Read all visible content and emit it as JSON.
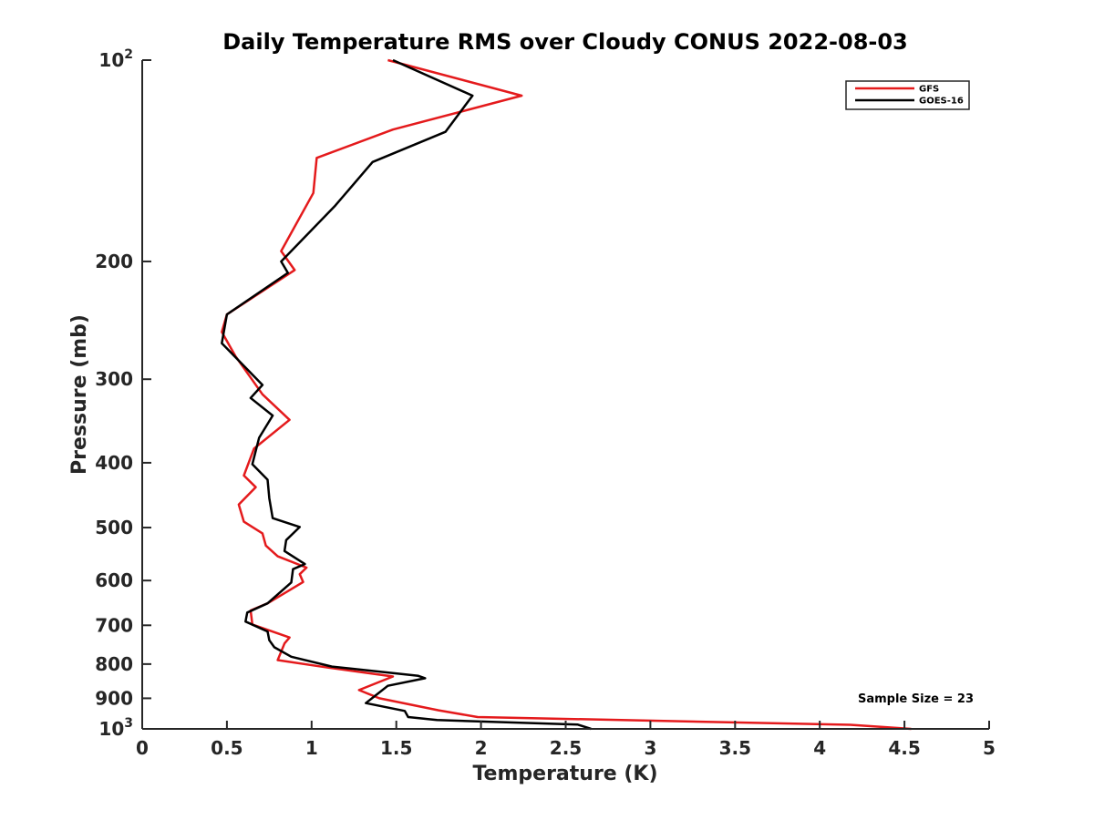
{
  "chart_data": {
    "type": "line",
    "title": "Daily Temperature RMS over Cloudy CONUS 2022-08-03",
    "xlabel": "Temperature (K)",
    "ylabel": "Pressure (mb)",
    "xlim": [
      0,
      5
    ],
    "ylim": [
      100,
      1000
    ],
    "y_scale": "log",
    "y_reversed": true,
    "grid": false,
    "legend_position": "top-right",
    "x_ticks": [
      "0",
      "0.5",
      "1",
      "1.5",
      "2",
      "2.5",
      "3",
      "3.5",
      "4",
      "4.5",
      "5"
    ],
    "x_tick_values": [
      0,
      0.5,
      1,
      1.5,
      2,
      2.5,
      3,
      3.5,
      4,
      4.5,
      5
    ],
    "y_ticks": [
      {
        "value": 100,
        "label": "10",
        "exp": "2"
      },
      {
        "value": 200,
        "label": "200"
      },
      {
        "value": 300,
        "label": "300"
      },
      {
        "value": 400,
        "label": "400"
      },
      {
        "value": 500,
        "label": "500"
      },
      {
        "value": 600,
        "label": "600"
      },
      {
        "value": 700,
        "label": "700"
      },
      {
        "value": 800,
        "label": "800"
      },
      {
        "value": 900,
        "label": "900"
      },
      {
        "value": 1000,
        "label": "10",
        "exp": "3"
      }
    ],
    "annotation": "Sample Size = 23",
    "series": [
      {
        "name": "GFS",
        "color": "#e41a1c",
        "points": [
          [
            1.45,
            100
          ],
          [
            2.24,
            113
          ],
          [
            1.48,
            127
          ],
          [
            1.03,
            140
          ],
          [
            1.01,
            158
          ],
          [
            0.82,
            193
          ],
          [
            0.9,
            206
          ],
          [
            0.5,
            240
          ],
          [
            0.47,
            255
          ],
          [
            0.55,
            277
          ],
          [
            0.71,
            316
          ],
          [
            0.87,
            345
          ],
          [
            0.66,
            381
          ],
          [
            0.6,
            418
          ],
          [
            0.67,
            435
          ],
          [
            0.57,
            462
          ],
          [
            0.6,
            490
          ],
          [
            0.71,
            510
          ],
          [
            0.73,
            532
          ],
          [
            0.8,
            552
          ],
          [
            0.97,
            574
          ],
          [
            0.93,
            587
          ],
          [
            0.95,
            603
          ],
          [
            0.74,
            649
          ],
          [
            0.64,
            665
          ],
          [
            0.65,
            698
          ],
          [
            0.87,
            730
          ],
          [
            0.84,
            745
          ],
          [
            0.8,
            789
          ],
          [
            1.1,
            810
          ],
          [
            1.48,
            835
          ],
          [
            1.28,
            875
          ],
          [
            1.4,
            900
          ],
          [
            1.75,
            938
          ],
          [
            1.98,
            960
          ],
          [
            4.18,
            986
          ],
          [
            4.54,
            1000
          ]
        ]
      },
      {
        "name": "GOES-16",
        "color": "#000000",
        "points": [
          [
            1.48,
            100
          ],
          [
            1.95,
            113
          ],
          [
            1.79,
            128
          ],
          [
            1.36,
            142
          ],
          [
            1.14,
            165
          ],
          [
            0.82,
            200
          ],
          [
            0.86,
            208
          ],
          [
            0.5,
            240
          ],
          [
            0.47,
            265
          ],
          [
            0.71,
            306
          ],
          [
            0.64,
            320
          ],
          [
            0.77,
            340
          ],
          [
            0.69,
            367
          ],
          [
            0.65,
            402
          ],
          [
            0.74,
            424
          ],
          [
            0.75,
            452
          ],
          [
            0.77,
            484
          ],
          [
            0.93,
            499
          ],
          [
            0.85,
            522
          ],
          [
            0.84,
            542
          ],
          [
            0.96,
            567
          ],
          [
            0.89,
            577
          ],
          [
            0.88,
            604
          ],
          [
            0.74,
            649
          ],
          [
            0.62,
            670
          ],
          [
            0.61,
            691
          ],
          [
            0.74,
            715
          ],
          [
            0.75,
            737
          ],
          [
            0.78,
            755
          ],
          [
            0.88,
            780
          ],
          [
            1.12,
            807
          ],
          [
            1.63,
            833
          ],
          [
            1.67,
            840
          ],
          [
            1.45,
            862
          ],
          [
            1.32,
            915
          ],
          [
            1.55,
            940
          ],
          [
            1.57,
            960
          ],
          [
            1.74,
            970
          ],
          [
            2.57,
            985
          ],
          [
            2.65,
            1000
          ]
        ]
      }
    ]
  }
}
